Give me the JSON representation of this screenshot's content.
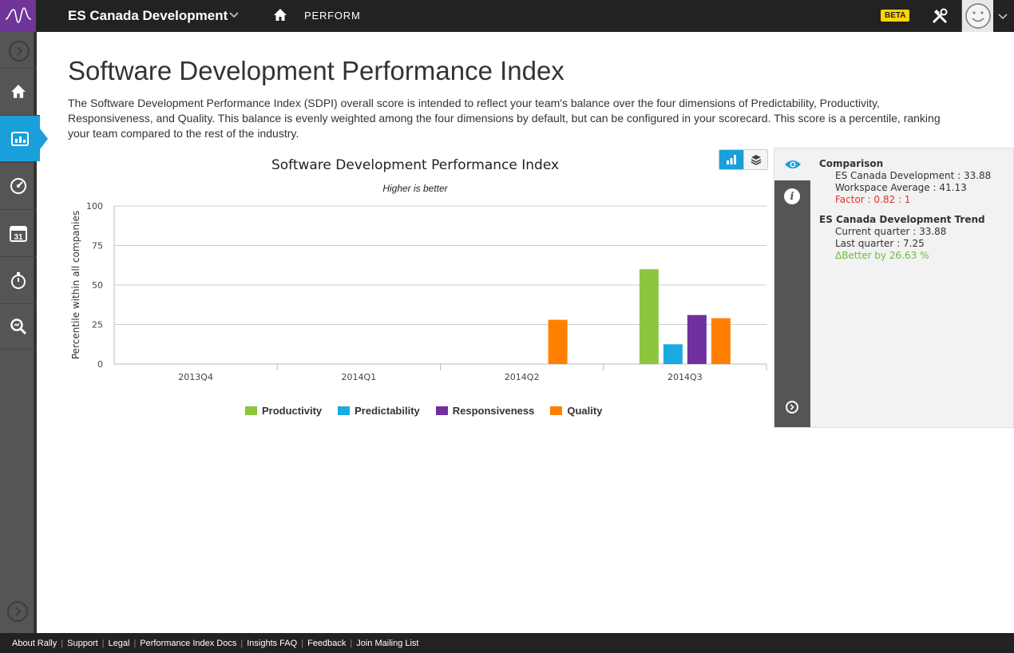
{
  "header": {
    "workspace_name": "ES Canada Development",
    "section_label": "PERFORM",
    "beta_label": "BETA"
  },
  "colors": {
    "accent": "#1a9fda",
    "brand": "#6f3598",
    "productivity": "#8cc63f",
    "predictability": "#1aabe0",
    "responsiveness": "#7030a0",
    "quality": "#ff8000"
  },
  "nav": {
    "icons": [
      "home-icon",
      "report-icon",
      "dashboard-gauge-icon",
      "calendar-icon",
      "stopwatch-icon",
      "search-magnifier-icon"
    ],
    "calendar_day": "31"
  },
  "page": {
    "title": "Software Development Performance Index",
    "description": "The Software Development Performance Index (SDPI) overall score is intended to reflect your team's balance over the four dimensions of Predictability, Productivity, Responsiveness, and Quality. This balance is evenly weighted among the four dimensions by default, but can be configured in your scorecard. This score is a percentile, ranking your team compared to the rest of the industry."
  },
  "chart_data": {
    "type": "bar",
    "title": "Software Development Performance Index",
    "subtitle": "Higher is better",
    "ylabel": "Percentile within all companies",
    "xlabel": "",
    "ylim": [
      0,
      100
    ],
    "yticks": [
      "0",
      "25",
      "50",
      "75",
      "100"
    ],
    "categories": [
      "2013Q4",
      "2014Q1",
      "2014Q2",
      "2014Q3"
    ],
    "series": [
      {
        "name": "Productivity",
        "values": [
          null,
          null,
          null,
          60
        ]
      },
      {
        "name": "Predictability",
        "values": [
          null,
          null,
          null,
          12.5
        ]
      },
      {
        "name": "Responsiveness",
        "values": [
          null,
          null,
          null,
          31
        ]
      },
      {
        "name": "Quality",
        "values": [
          null,
          null,
          28,
          29
        ]
      }
    ],
    "legend_position": "bottom-center",
    "grid": true
  },
  "info": {
    "comparison": {
      "heading": "Comparison",
      "team_line": "ES Canada Development : 33.88",
      "workspace_line": "Workspace Average : 41.13",
      "factor_line": "Factor : 0.82 : 1"
    },
    "trend": {
      "heading": "ES Canada Development Trend",
      "current_line": "Current quarter : 33.88",
      "last_line": "Last quarter : 7.25",
      "delta_line": "ΔBetter by 26.63 %"
    }
  },
  "footer": {
    "links": [
      "About Rally",
      "Support",
      "Legal",
      "Performance Index Docs",
      "Insights FAQ",
      "Feedback",
      "Join Mailing List"
    ]
  }
}
